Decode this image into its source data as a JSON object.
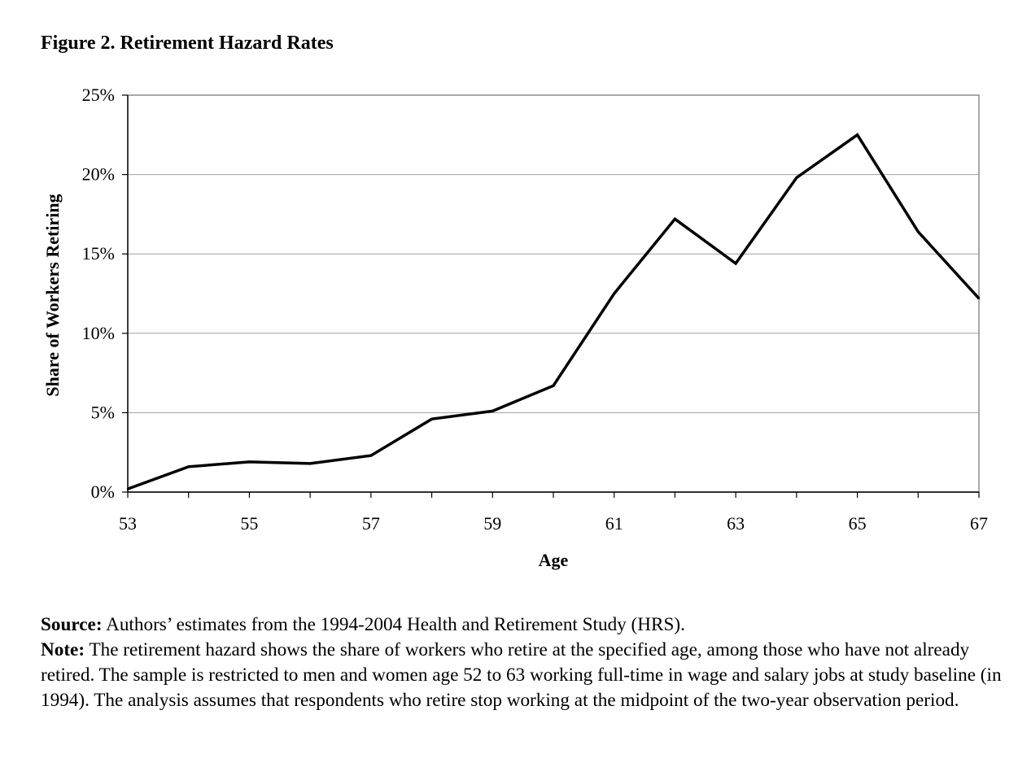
{
  "figure_title": "Figure 2. Retirement Hazard Rates",
  "chart_data": {
    "type": "line",
    "title": "Figure 2. Retirement Hazard Rates",
    "xlabel": "Age",
    "ylabel": "Share of Workers Retiring",
    "x": [
      53,
      54,
      55,
      56,
      57,
      58,
      59,
      60,
      61,
      62,
      63,
      64,
      65,
      66,
      67
    ],
    "x_tick_labels": [
      "53",
      "55",
      "57",
      "59",
      "61",
      "63",
      "65",
      "67"
    ],
    "x_tick_values": [
      53,
      55,
      57,
      59,
      61,
      63,
      65,
      67
    ],
    "y_tick_labels": [
      "0%",
      "5%",
      "10%",
      "15%",
      "20%",
      "25%"
    ],
    "y_tick_values": [
      0,
      5,
      10,
      15,
      20,
      25
    ],
    "series": [
      {
        "values": [
          0.2,
          1.6,
          1.9,
          1.8,
          2.3,
          4.6,
          5.1,
          6.7,
          12.5,
          17.2,
          14.4,
          19.8,
          22.5,
          16.4,
          12.2
        ]
      }
    ],
    "xlim": [
      53,
      67
    ],
    "ylim": [
      0,
      25
    ],
    "grid": "horizontal",
    "legend": "none",
    "line_color": "#000000",
    "grid_color": "#a0a0a0"
  },
  "notes": {
    "source_label": "Source:",
    "source_text": " Authors’ estimates from the 1994-2004 Health and Retirement Study (HRS).",
    "note_label": "Note:",
    "note_text": " The retirement hazard shows the share of workers who retire at the specified age, among those who have not already retired. The sample is restricted to men and women age 52 to 63 working full-time in wage and salary jobs at study baseline (in 1994). The analysis assumes that respondents who retire stop working at the midpoint of the two-year observation period."
  }
}
